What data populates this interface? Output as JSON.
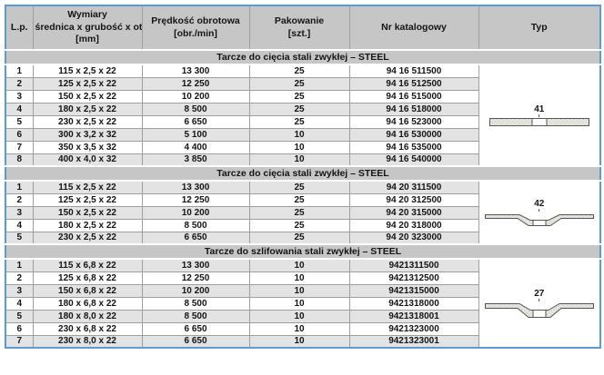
{
  "table": {
    "columns": [
      {
        "name": "lp",
        "lines": [
          "L.p."
        ]
      },
      {
        "name": "dimensions",
        "lines": [
          "Wymiary",
          "średnica x grubość x otwór",
          "[mm]"
        ]
      },
      {
        "name": "speed",
        "lines": [
          "Prędkość obrotowa",
          "[obr./min]"
        ]
      },
      {
        "name": "packaging",
        "lines": [
          "Pakowanie",
          "[szt.]"
        ]
      },
      {
        "name": "catalog",
        "lines": [
          "Nr katalogowy"
        ]
      },
      {
        "name": "type",
        "lines": [
          "Typ"
        ]
      }
    ],
    "sections": [
      {
        "title": "Tarcze do cięcia stali zwykłej – STEEL",
        "type_number": "41",
        "type_icon": "flat-cutting-disc-icon",
        "first_row_shaded": false,
        "rows": [
          {
            "lp": "1",
            "dimensions": "115 x 2,5 x 22",
            "speed": "13 300",
            "packaging": "25",
            "catalog": "94 16 511500"
          },
          {
            "lp": "2",
            "dimensions": "125 x 2,5 x 22",
            "speed": "12 250",
            "packaging": "25",
            "catalog": "94 16 512500"
          },
          {
            "lp": "3",
            "dimensions": "150 x 2,5 x 22",
            "speed": "10 200",
            "packaging": "25",
            "catalog": "94 16 515000"
          },
          {
            "lp": "4",
            "dimensions": "180 x 2,5 x 22",
            "speed": "8 500",
            "packaging": "25",
            "catalog": "94 16 518000"
          },
          {
            "lp": "5",
            "dimensions": "230 x 2,5 x 22",
            "speed": "6 650",
            "packaging": "25",
            "catalog": "94 16 523000"
          },
          {
            "lp": "6",
            "dimensions": "300 x 3,2 x 32",
            "speed": "5 100",
            "packaging": "10",
            "catalog": "94 16 530000"
          },
          {
            "lp": "7",
            "dimensions": "350 x 3,5 x 32",
            "speed": "4 400",
            "packaging": "10",
            "catalog": "94 16 535000"
          },
          {
            "lp": "8",
            "dimensions": "400 x 4,0 x 32",
            "speed": "3 850",
            "packaging": "10",
            "catalog": "94 16 540000"
          }
        ]
      },
      {
        "title": "Tarcze do cięcia stali zwykłej – STEEL",
        "type_number": "42",
        "type_icon": "depressed-center-cutting-disc-icon",
        "first_row_shaded": true,
        "rows": [
          {
            "lp": "1",
            "dimensions": "115 x 2,5 x 22",
            "speed": "13 300",
            "packaging": "25",
            "catalog": "94 20 311500"
          },
          {
            "lp": "2",
            "dimensions": "125 x 2,5 x 22",
            "speed": "12 250",
            "packaging": "25",
            "catalog": "94 20 312500"
          },
          {
            "lp": "3",
            "dimensions": "150 x 2,5 x 22",
            "speed": "10 200",
            "packaging": "25",
            "catalog": "94 20 315000"
          },
          {
            "lp": "4",
            "dimensions": "180 x 2,5 x 22",
            "speed": "8 500",
            "packaging": "25",
            "catalog": "94 20 318000"
          },
          {
            "lp": "5",
            "dimensions": "230 x 2,5 x 22",
            "speed": "6 650",
            "packaging": "25",
            "catalog": "94 20 323000"
          }
        ]
      },
      {
        "title": "Tarcze do szlifowania stali zwykłej – STEEL",
        "type_number": "27",
        "type_icon": "depressed-center-grinding-disc-icon",
        "first_row_shaded": true,
        "rows": [
          {
            "lp": "1",
            "dimensions": "115 x 6,8 x 22",
            "speed": "13 300",
            "packaging": "10",
            "catalog": "9421311500"
          },
          {
            "lp": "2",
            "dimensions": "125 x 6,8 x 22",
            "speed": "12 250",
            "packaging": "10",
            "catalog": "9421312500"
          },
          {
            "lp": "3",
            "dimensions": "150 x 6,8 x 22",
            "speed": "10 200",
            "packaging": "10",
            "catalog": "9421315000"
          },
          {
            "lp": "4",
            "dimensions": "180 x 6,8 x 22",
            "speed": "8 500",
            "packaging": "10",
            "catalog": "9421318000"
          },
          {
            "lp": "5",
            "dimensions": "180 x 8,0 x 22",
            "speed": "8 500",
            "packaging": "10",
            "catalog": "9421318001"
          },
          {
            "lp": "6",
            "dimensions": "230 x 6,8 x 22",
            "speed": "6 650",
            "packaging": "10",
            "catalog": "9421323000"
          },
          {
            "lp": "7",
            "dimensions": "230 x 8,0 x 22",
            "speed": "6 650",
            "packaging": "10",
            "catalog": "9421323001"
          }
        ]
      }
    ]
  },
  "colors": {
    "outer_border": "#5b9bd5",
    "header_bg": "#c6c6c6",
    "section_bg": "#c6c6c6",
    "row_shaded_bg": "#e3e3e3",
    "row_plain_bg": "#ffffff",
    "grid_line": "#9e9e9e",
    "text": "#141414",
    "disc_fill": "#e6e5e0",
    "disc_outline": "#555555"
  }
}
